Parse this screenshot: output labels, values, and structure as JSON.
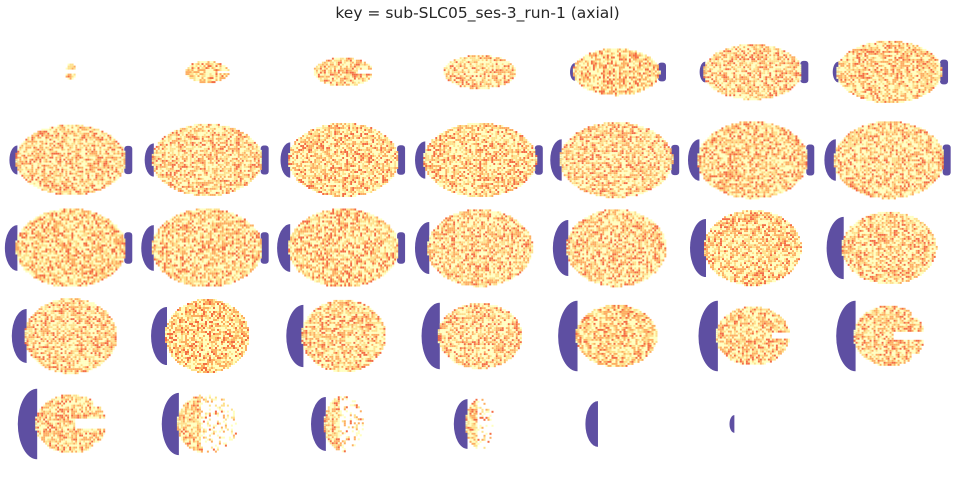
{
  "figure": {
    "title": "key = sub-SLC05_ses-3_run-1 (axial)"
  },
  "colormap": {
    "low": "#5e4fa2",
    "mid_low": "#f46d43",
    "mid": "#fdae61",
    "mid_high": "#fee08b",
    "high": "#ffffbf"
  },
  "slices": [
    {
      "w": 0.08,
      "h": 0.2,
      "head": 0.0,
      "blob": "pair"
    },
    {
      "w": 0.33,
      "h": 0.26,
      "head": 0.0,
      "blob": "lobed"
    },
    {
      "w": 0.45,
      "h": 0.34,
      "head": 0.0,
      "blob": "lobed"
    },
    {
      "w": 0.55,
      "h": 0.4,
      "head": 0.0,
      "blob": "oval"
    },
    {
      "w": 0.66,
      "h": 0.56,
      "head": 0.06,
      "blob": "oval"
    },
    {
      "w": 0.75,
      "h": 0.66,
      "head": 0.1,
      "blob": "oval"
    },
    {
      "w": 0.8,
      "h": 0.74,
      "head": 0.1,
      "blob": "oval"
    },
    {
      "w": 0.84,
      "h": 0.84,
      "head": 0.14,
      "blob": "oval"
    },
    {
      "w": 0.84,
      "h": 0.86,
      "head": 0.16,
      "blob": "oval"
    },
    {
      "w": 0.84,
      "h": 0.88,
      "head": 0.17,
      "blob": "oval"
    },
    {
      "w": 0.86,
      "h": 0.88,
      "head": 0.18,
      "blob": "oval"
    },
    {
      "w": 0.86,
      "h": 0.9,
      "head": 0.2,
      "blob": "oval"
    },
    {
      "w": 0.84,
      "h": 0.92,
      "head": 0.2,
      "blob": "oval"
    },
    {
      "w": 0.84,
      "h": 0.92,
      "head": 0.2,
      "blob": "oval"
    },
    {
      "w": 0.84,
      "h": 0.94,
      "head": 0.22,
      "blob": "oval"
    },
    {
      "w": 0.84,
      "h": 0.94,
      "head": 0.22,
      "blob": "oval"
    },
    {
      "w": 0.84,
      "h": 0.94,
      "head": 0.23,
      "blob": "oval"
    },
    {
      "w": 0.8,
      "h": 0.92,
      "head": 0.25,
      "blob": "oval"
    },
    {
      "w": 0.76,
      "h": 0.92,
      "head": 0.27,
      "blob": "oval"
    },
    {
      "w": 0.74,
      "h": 0.9,
      "head": 0.28,
      "blob": "oval"
    },
    {
      "w": 0.72,
      "h": 0.86,
      "head": 0.3,
      "blob": "oval"
    },
    {
      "w": 0.7,
      "h": 0.9,
      "head": 0.26,
      "blob": "oval"
    },
    {
      "w": 0.64,
      "h": 0.88,
      "head": 0.28,
      "blob": "oval"
    },
    {
      "w": 0.64,
      "h": 0.86,
      "head": 0.3,
      "blob": "oval"
    },
    {
      "w": 0.64,
      "h": 0.78,
      "head": 0.32,
      "blob": "oval"
    },
    {
      "w": 0.62,
      "h": 0.74,
      "head": 0.34,
      "blob": "oval"
    },
    {
      "w": 0.56,
      "h": 0.7,
      "head": 0.34,
      "blob": "lobed"
    },
    {
      "w": 0.54,
      "h": 0.72,
      "head": 0.34,
      "blob": "split"
    },
    {
      "w": 0.54,
      "h": 0.7,
      "head": 0.34,
      "blob": "split"
    },
    {
      "w": 0.46,
      "h": 0.7,
      "head": 0.3,
      "blob": "scatter"
    },
    {
      "w": 0.3,
      "h": 0.66,
      "head": 0.26,
      "blob": "scatter"
    },
    {
      "w": 0.22,
      "h": 0.6,
      "head": 0.24,
      "blob": "scatter"
    },
    {
      "w": 0.0,
      "h": 0.0,
      "head": 0.22,
      "blob": "none"
    },
    {
      "w": 0.0,
      "h": 0.0,
      "head": 0.06,
      "blob": "none"
    }
  ]
}
